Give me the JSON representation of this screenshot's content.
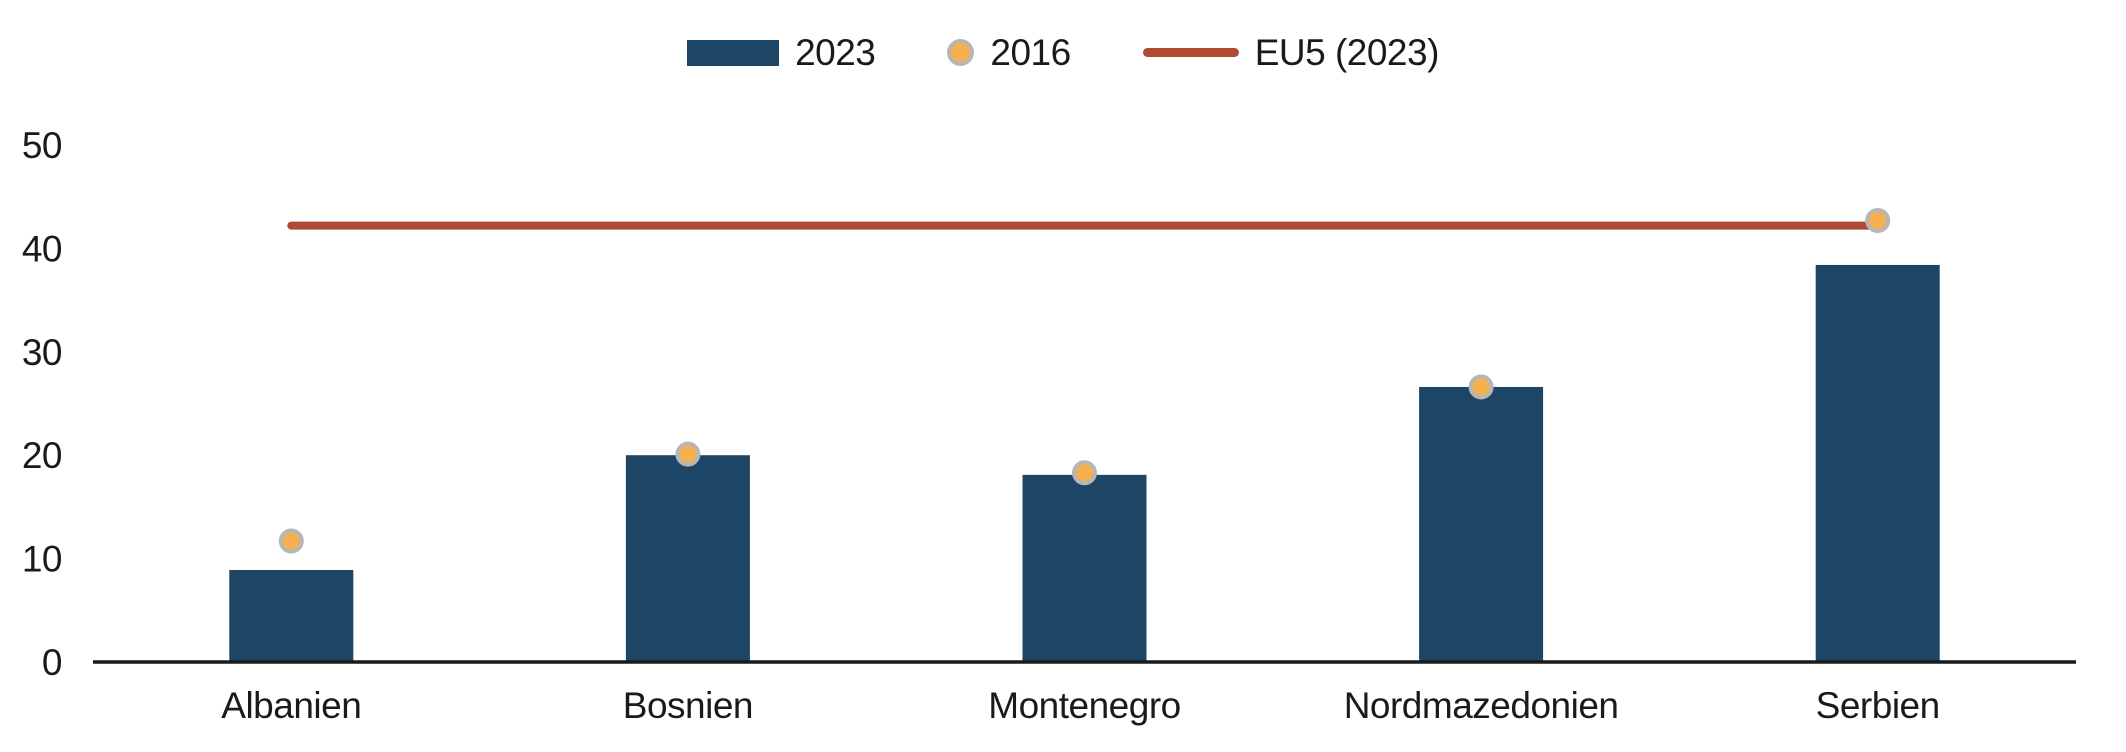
{
  "chart_data": {
    "type": "bar",
    "title": "",
    "xlabel": "",
    "ylabel": "",
    "categories": [
      "Albanien",
      "Bosnien",
      "Montenegro",
      "Nordmazedonien",
      "Serbien"
    ],
    "series": [
      {
        "name": "2023",
        "kind": "bar",
        "color": "#1c4566",
        "values": [
          8.9,
          20.0,
          18.1,
          26.6,
          38.4
        ]
      },
      {
        "name": "2016",
        "kind": "scatter",
        "color": "#f7b04e",
        "ring_color": "#b6b6b6",
        "values": [
          11.7,
          20.1,
          18.3,
          26.6,
          42.7
        ]
      },
      {
        "name": "EU5 (2023)",
        "kind": "reference-line",
        "color": "#b04a33",
        "value": 42.2
      }
    ],
    "ylim": [
      0,
      50
    ],
    "yticks": [
      0,
      10,
      20,
      30,
      40,
      50
    ],
    "grid": false,
    "legend_position": "top",
    "axis_color": "#1a1a1a",
    "text_color": "#1a1a1a",
    "background_color": "#ffffff"
  }
}
